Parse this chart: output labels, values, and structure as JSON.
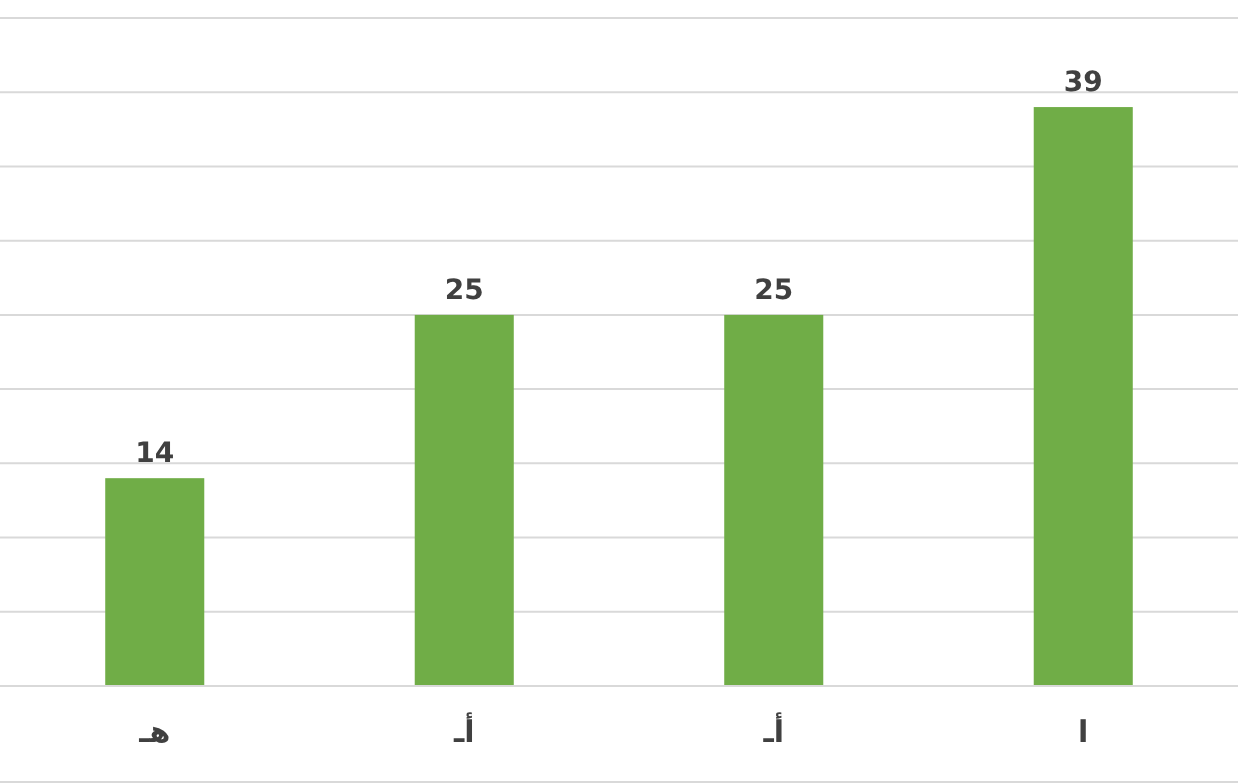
{
  "chart_data": {
    "type": "bar",
    "categories": [
      "هـ",
      "أـ",
      "أـ",
      "ا"
    ],
    "series": [
      {
        "color": "#70ad47",
        "values": [
          14,
          25,
          25,
          39
        ]
      }
    ],
    "ylim": [
      0,
      45
    ],
    "yticks": [
      {
        "value": 0,
        "label": null
      },
      {
        "value": 5,
        "label": null
      },
      {
        "value": 10,
        "label": null
      },
      {
        "value": 15,
        "label": null
      },
      {
        "value": 20,
        "label": null
      },
      {
        "value": 25,
        "label": null
      },
      {
        "value": 30,
        "label": null
      },
      {
        "value": 35,
        "label": null
      },
      {
        "value": 40,
        "label": null
      },
      {
        "value": 45,
        "label": null
      }
    ],
    "grid": "y",
    "data_labels": true,
    "tick_labels": "x"
  }
}
